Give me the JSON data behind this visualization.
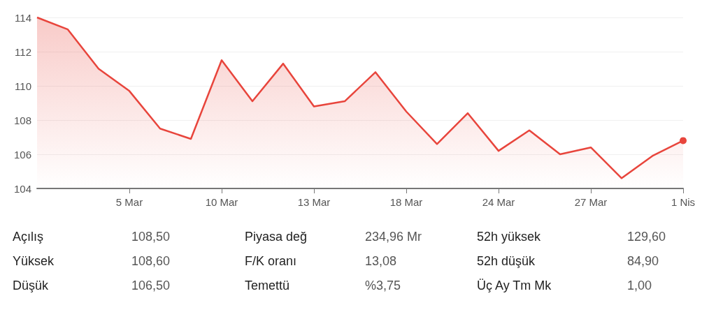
{
  "chart_data": {
    "type": "area",
    "categories": [
      null,
      null,
      null,
      "5 Mar",
      null,
      null,
      "10 Mar",
      null,
      null,
      "13 Mar",
      null,
      null,
      "18 Mar",
      null,
      null,
      "24 Mar",
      null,
      null,
      "27 Mar",
      null,
      null,
      "1 Nis"
    ],
    "series": [
      {
        "color": "#e8453c",
        "values": [
          114.0,
          113.3,
          111.0,
          109.7,
          107.5,
          106.9,
          111.5,
          109.1,
          111.3,
          108.8,
          109.1,
          110.8,
          108.5,
          106.6,
          108.4,
          106.2,
          107.4,
          106.0,
          106.4,
          104.6,
          105.9,
          106.8
        ]
      }
    ],
    "ylim": [
      104,
      114
    ],
    "yticks": [
      104,
      106,
      108,
      110,
      112,
      114
    ],
    "grid": "y",
    "annotations": [
      "Açılış",
      "108,50",
      "Piyasa değ",
      "234,96 Mr",
      "52h yüksek",
      "129,60",
      "Yüksek",
      "108,60",
      "F/K oranı",
      "13,08",
      "52h düşük",
      "84,90",
      "Düşük",
      "106,50",
      "Temettü",
      "%3,75",
      "Üç Ay Tm Mk",
      "1,00"
    ]
  }
}
